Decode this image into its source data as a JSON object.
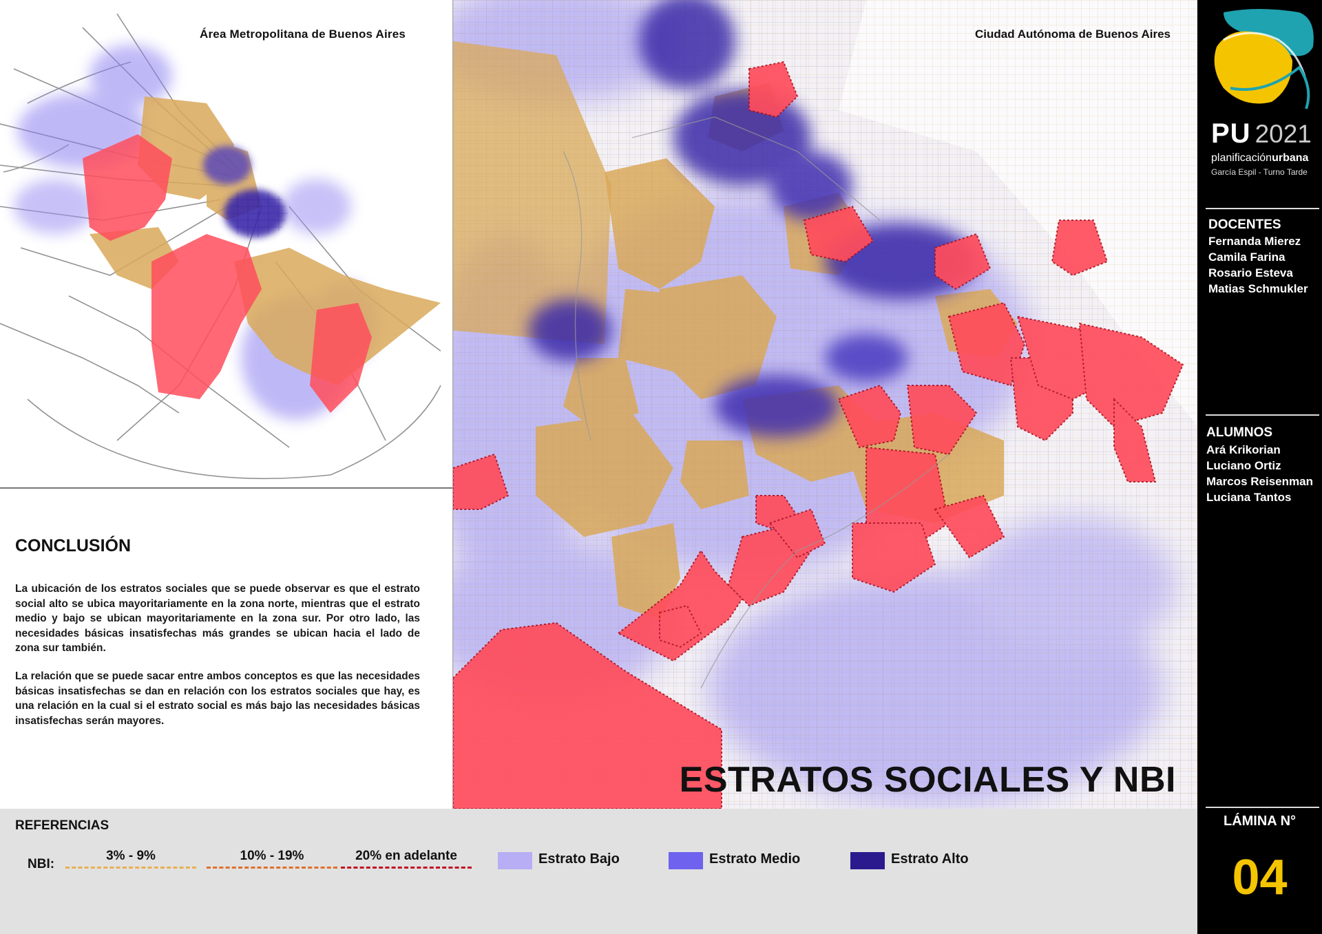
{
  "left_panel": {
    "map_title": "Área Metropolitana de Buenos Aires",
    "conclusion_title": "CONCLUSIÓN",
    "paragraph_1": "La ubicación de los estratos sociales que se puede observar es que el estrato social alto se ubica mayoritariamente en la zona norte, mientras que el estrato medio y bajo se ubican mayoritariamente en la zona sur. Por otro lado, las necesidades básicas insatisfechas más grandes se ubican hacia el lado de zona sur también.",
    "paragraph_2": "La relación que se puede sacar entre ambos conceptos es que las necesidades básicas insatisfechas se dan en relación con los estratos sociales que hay, es una relación en la cual si el estrato social es más bajo las necesidades básicas insatisfechas serán mayores."
  },
  "main_map": {
    "map_title": "Ciudad Autónoma de Buenos Aires",
    "sheet_title": "ESTRATOS SOCIALES Y NBI"
  },
  "sidebar": {
    "logo_text": "PU",
    "year": "2021",
    "subtitle_regular": "planificación",
    "subtitle_bold": "urbana",
    "course": "García Espil - Turno Tarde",
    "docentes_title": "DOCENTES",
    "docentes": [
      "Fernanda Mierez",
      "Camila Farina",
      "Rosario Esteva",
      "Matias Schmukler"
    ],
    "alumnos_title": "ALUMNOS",
    "alumnos": [
      "Ará Krikorian",
      "Luciano Ortiz",
      "Marcos Reisenman",
      "Luciana Tantos"
    ],
    "lamina_label": "LÁMINA N°",
    "lamina_number": "04"
  },
  "legend": {
    "title": "REFERENCIAS",
    "nbi_label": "NBI:",
    "nbi_classes": [
      {
        "label": "3% - 9%",
        "color": "#e8b050"
      },
      {
        "label": "10% - 19%",
        "color": "#e07028"
      },
      {
        "label": "20% en adelante",
        "color": "#c01020"
      }
    ],
    "strata": [
      {
        "label": "Estrato Bajo",
        "color": "#b8aef5"
      },
      {
        "label": "Estrato Medio",
        "color": "#6e62ee"
      },
      {
        "label": "Estrato Alto",
        "color": "#2a1a8e"
      }
    ]
  },
  "map_colors": {
    "nbi_low": "#d9a95a",
    "nbi_high": "#ff4d5c",
    "strata_low": "#a89cf0",
    "strata_high": "#3a2a9a"
  }
}
